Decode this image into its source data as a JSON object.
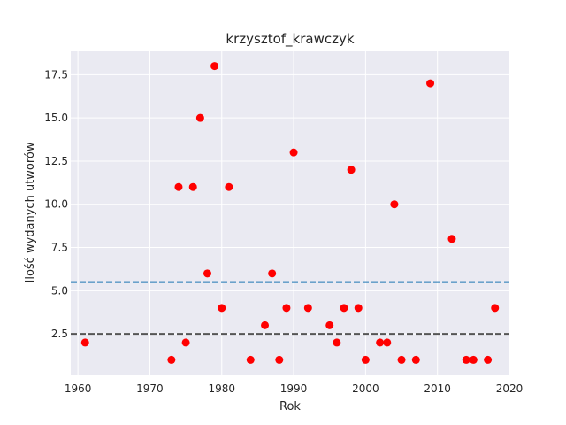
{
  "chart_data": {
    "type": "scatter",
    "title": "krzysztof_krawczyk",
    "xlabel": "Rok",
    "ylabel": "Ilość wydanych utworów",
    "xlim": [
      1959,
      2020
    ],
    "ylim": [
      0.15,
      18.85
    ],
    "xticks": [
      1960,
      1970,
      1980,
      1990,
      2000,
      2010,
      2020
    ],
    "yticks": [
      2.5,
      5.0,
      7.5,
      10.0,
      12.5,
      15.0,
      17.5
    ],
    "ytick_labels": [
      "2.5",
      "5.0",
      "7.5",
      "10.0",
      "12.5",
      "15.0",
      "17.5"
    ],
    "grid": true,
    "background": "#eaeaf2",
    "point_color": "#ff0000",
    "x": [
      1961,
      1973,
      1974,
      1975,
      1976,
      1977,
      1978,
      1979,
      1980,
      1981,
      1984,
      1986,
      1987,
      1988,
      1989,
      1990,
      1992,
      1995,
      1996,
      1997,
      1998,
      1999,
      2000,
      2002,
      2003,
      2004,
      2005,
      2007,
      2009,
      2012,
      2014,
      2015,
      2017,
      2018
    ],
    "y": [
      2,
      1,
      11,
      2,
      11,
      15,
      6,
      18,
      4,
      11,
      1,
      3,
      6,
      1,
      4,
      13,
      4,
      3,
      2,
      4,
      12,
      4,
      1,
      2,
      2,
      10,
      1,
      1,
      17,
      8,
      1,
      1,
      1,
      4
    ],
    "hlines": [
      {
        "y": 5.5,
        "color": "#1f77b4",
        "style": "dashed"
      },
      {
        "y": 2.5,
        "color": "#555555",
        "style": "dashed"
      }
    ]
  }
}
